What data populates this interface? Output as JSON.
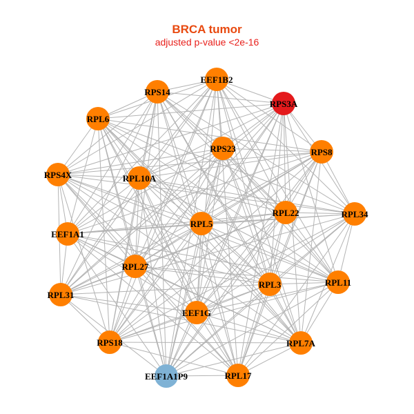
{
  "header": {
    "title": "BRCA tumor",
    "subtitle": "adjusted p-value <2e-16",
    "title_color": "#e8490f",
    "subtitle_color": "#e8201c"
  },
  "colors": {
    "edge": "#b3b3b3",
    "default": "#ff7f00",
    "highlight": "#e41a1c",
    "pseudogene": "#7fb2d5"
  },
  "nodes": [
    {
      "id": "EEF1B2",
      "status": "default"
    },
    {
      "id": "RPS14",
      "status": "default"
    },
    {
      "id": "RPS3A",
      "status": "highlight"
    },
    {
      "id": "RPL6",
      "status": "default"
    },
    {
      "id": "RPS23",
      "status": "default"
    },
    {
      "id": "RPS8",
      "status": "default"
    },
    {
      "id": "RPS4X",
      "status": "default"
    },
    {
      "id": "RPL10A",
      "status": "default"
    },
    {
      "id": "RPL22",
      "status": "default"
    },
    {
      "id": "RPL34",
      "status": "default"
    },
    {
      "id": "EEF1A1",
      "status": "default"
    },
    {
      "id": "RPL5",
      "status": "default"
    },
    {
      "id": "RPL27",
      "status": "default"
    },
    {
      "id": "RPL3",
      "status": "default"
    },
    {
      "id": "RPL11",
      "status": "default"
    },
    {
      "id": "RPL31",
      "status": "default"
    },
    {
      "id": "EEF1G",
      "status": "default"
    },
    {
      "id": "RPS18",
      "status": "default"
    },
    {
      "id": "RPL7A",
      "status": "default"
    },
    {
      "id": "EEF1A1P9",
      "status": "pseudogene"
    },
    {
      "id": "RPL17",
      "status": "default"
    }
  ]
}
